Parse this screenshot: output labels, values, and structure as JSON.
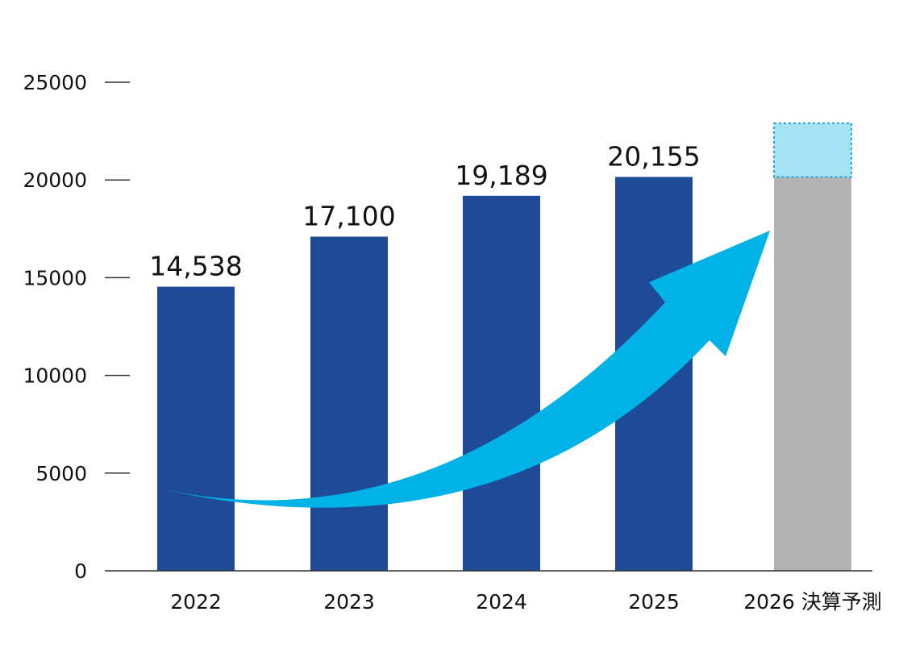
{
  "chart_data": {
    "type": "bar",
    "title": "",
    "xlabel": "",
    "ylabel": "",
    "ylim": [
      0,
      25000
    ],
    "yticks": [
      0,
      5000,
      10000,
      15000,
      20000,
      25000
    ],
    "grid": false,
    "legend": "none",
    "categories": [
      "2022",
      "2023",
      "2024",
      "2025",
      "2026 決算予測"
    ],
    "values": [
      14538,
      17100,
      19189,
      20155,
      22900
    ],
    "value_labels": [
      "14,538",
      "17,100",
      "19,189",
      "20,155",
      ""
    ],
    "forecast": {
      "category": "2026 決算予測",
      "base_value": 20155,
      "upper_value": 22900
    },
    "annotations": [
      {
        "type": "arrow",
        "description": "upward growth trend arrow from 2022 to 2026"
      }
    ]
  },
  "colors": {
    "bar": "#1f4a98",
    "forecast_base": "#b2b2b2",
    "forecast_upper": "#a6e3f4",
    "forecast_border": "#17a7de",
    "arrow": "#00b2e6",
    "axis": "#333333"
  }
}
